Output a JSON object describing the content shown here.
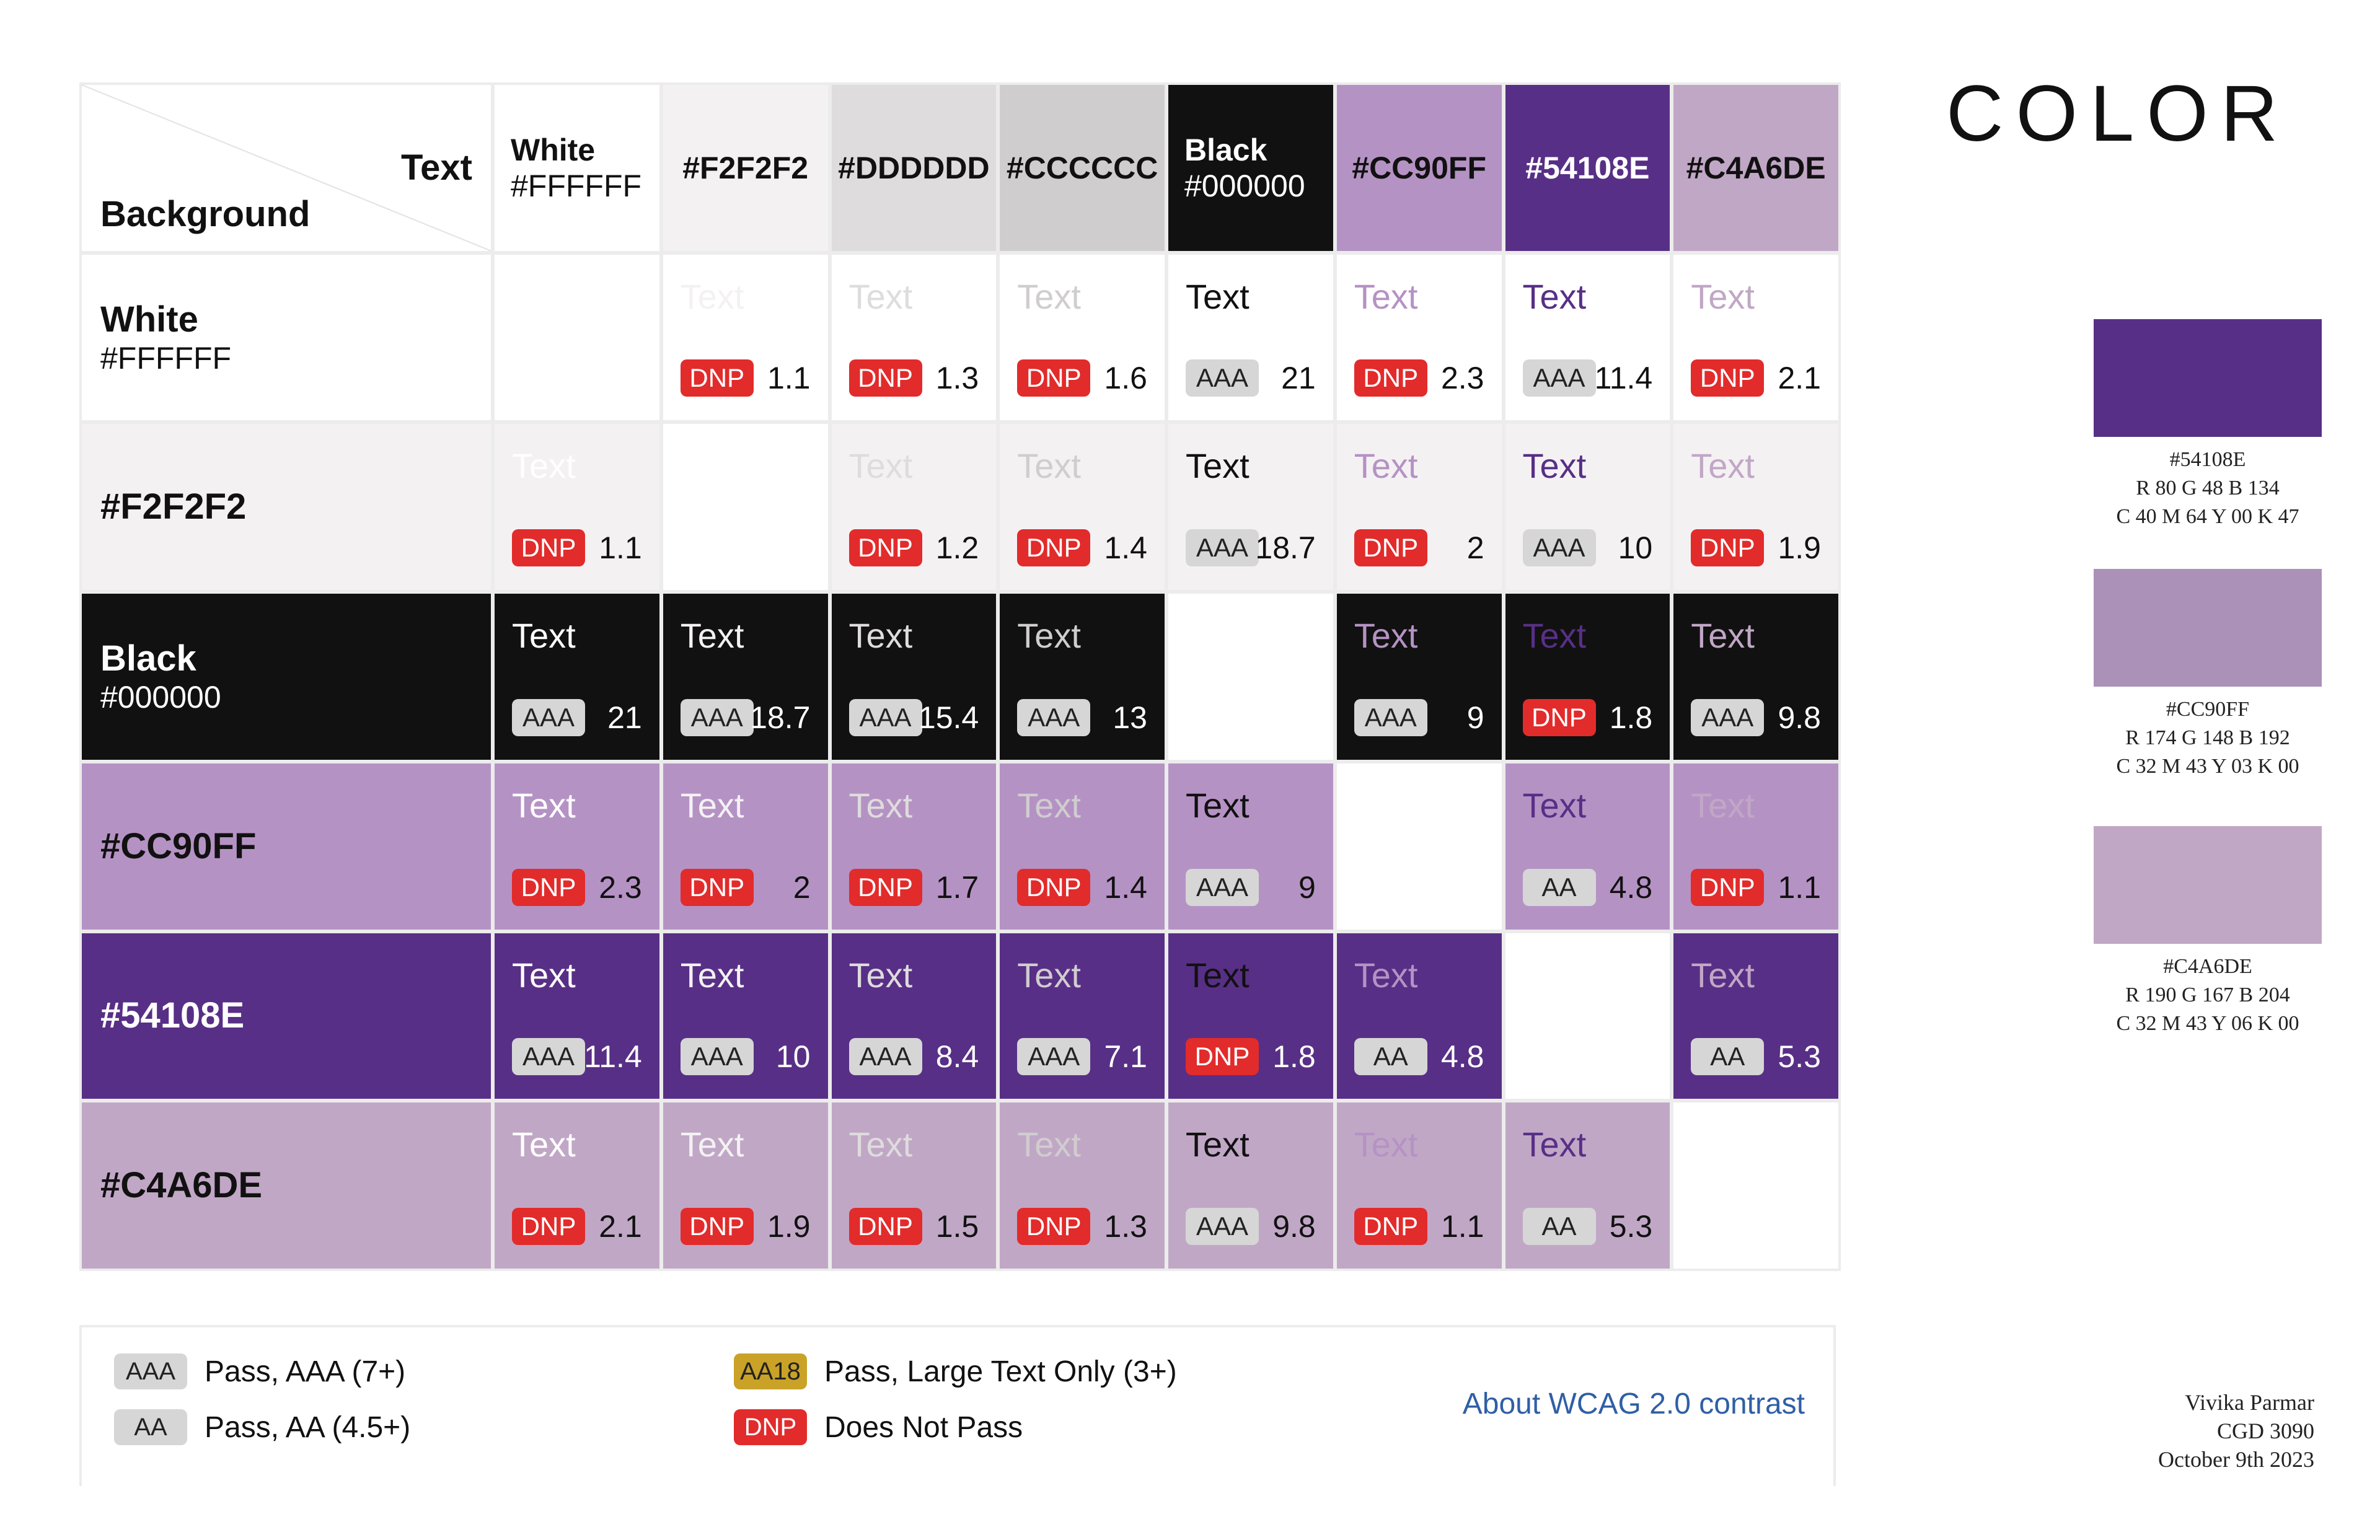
{
  "title": "COLOR",
  "corner": {
    "text_label": "Text",
    "background_label": "Background"
  },
  "sample_text": "Text",
  "columns": [
    {
      "name": "White",
      "hex": "#FFFFFF",
      "bg": "#ffffff",
      "fg": "#111111"
    },
    {
      "name": "",
      "hex": "#F2F2F2",
      "bg": "#f4f1f3",
      "fg": "#111111"
    },
    {
      "name": "",
      "hex": "#DDDDDD",
      "bg": "#dedcdd",
      "fg": "#111111"
    },
    {
      "name": "",
      "hex": "#CCCCCC",
      "bg": "#d0cdcf",
      "fg": "#111111"
    },
    {
      "name": "Black",
      "hex": "#000000",
      "bg": "#111111",
      "fg": "#ffffff"
    },
    {
      "name": "",
      "hex": "#CC90FF",
      "bg": "#b592c4",
      "fg": "#111111"
    },
    {
      "name": "",
      "hex": "#54108E",
      "bg": "#582f86",
      "fg": "#ffffff"
    },
    {
      "name": "",
      "hex": "#C4A6DE",
      "bg": "#c1a7c6",
      "fg": "#111111"
    }
  ],
  "text_colors": [
    "#ffffff",
    "#f4f1f3",
    "#dedcdd",
    "#d0cdcf",
    "#111111",
    "#b592c4",
    "#582f86",
    "#c1a7c6"
  ],
  "rows": [
    {
      "name": "White",
      "hex": "#FFFFFF",
      "bg": "#ffffff",
      "fg": "#111111",
      "cells": [
        null,
        {
          "badge": "DNP",
          "ratio": "1.1"
        },
        {
          "badge": "DNP",
          "ratio": "1.3"
        },
        {
          "badge": "DNP",
          "ratio": "1.6"
        },
        {
          "badge": "AAA",
          "ratio": "21"
        },
        {
          "badge": "DNP",
          "ratio": "2.3"
        },
        {
          "badge": "AAA",
          "ratio": "11.4"
        },
        {
          "badge": "DNP",
          "ratio": "2.1"
        }
      ]
    },
    {
      "name": "",
      "hex": "#F2F2F2",
      "bg": "#f4f1f3",
      "fg": "#111111",
      "cells": [
        {
          "badge": "DNP",
          "ratio": "1.1"
        },
        null,
        {
          "badge": "DNP",
          "ratio": "1.2"
        },
        {
          "badge": "DNP",
          "ratio": "1.4"
        },
        {
          "badge": "AAA",
          "ratio": "18.7"
        },
        {
          "badge": "DNP",
          "ratio": "2"
        },
        {
          "badge": "AAA",
          "ratio": "10"
        },
        {
          "badge": "DNP",
          "ratio": "1.9"
        }
      ]
    },
    {
      "name": "Black",
      "hex": "#000000",
      "bg": "#111111",
      "fg": "#ffffff",
      "cells": [
        {
          "badge": "AAA",
          "ratio": "21"
        },
        {
          "badge": "AAA",
          "ratio": "18.7"
        },
        {
          "badge": "AAA",
          "ratio": "15.4"
        },
        {
          "badge": "AAA",
          "ratio": "13"
        },
        null,
        {
          "badge": "AAA",
          "ratio": "9"
        },
        {
          "badge": "DNP",
          "ratio": "1.8"
        },
        {
          "badge": "AAA",
          "ratio": "9.8"
        }
      ]
    },
    {
      "name": "",
      "hex": "#CC90FF",
      "bg": "#b592c4",
      "fg": "#111111",
      "cells": [
        {
          "badge": "DNP",
          "ratio": "2.3"
        },
        {
          "badge": "DNP",
          "ratio": "2"
        },
        {
          "badge": "DNP",
          "ratio": "1.7"
        },
        {
          "badge": "DNP",
          "ratio": "1.4"
        },
        {
          "badge": "AAA",
          "ratio": "9"
        },
        null,
        {
          "badge": "AA",
          "ratio": "4.8"
        },
        {
          "badge": "DNP",
          "ratio": "1.1"
        }
      ]
    },
    {
      "name": "",
      "hex": "#54108E",
      "bg": "#582f86",
      "fg": "#ffffff",
      "cells": [
        {
          "badge": "AAA",
          "ratio": "11.4"
        },
        {
          "badge": "AAA",
          "ratio": "10"
        },
        {
          "badge": "AAA",
          "ratio": "8.4"
        },
        {
          "badge": "AAA",
          "ratio": "7.1"
        },
        {
          "badge": "DNP",
          "ratio": "1.8"
        },
        {
          "badge": "AA",
          "ratio": "4.8"
        },
        null,
        {
          "badge": "AA",
          "ratio": "5.3"
        }
      ]
    },
    {
      "name": "",
      "hex": "#C4A6DE",
      "bg": "#c1a7c6",
      "fg": "#111111",
      "cells": [
        {
          "badge": "DNP",
          "ratio": "2.1"
        },
        {
          "badge": "DNP",
          "ratio": "1.9"
        },
        {
          "badge": "DNP",
          "ratio": "1.5"
        },
        {
          "badge": "DNP",
          "ratio": "1.3"
        },
        {
          "badge": "AAA",
          "ratio": "9.8"
        },
        {
          "badge": "DNP",
          "ratio": "1.1"
        },
        {
          "badge": "AA",
          "ratio": "5.3"
        },
        null
      ]
    }
  ],
  "legend": {
    "aaa": {
      "badge": "AAA",
      "text": "Pass, AAA (7+)"
    },
    "aa": {
      "badge": "AA",
      "text": "Pass, AA (4.5+)"
    },
    "aa18": {
      "badge": "AA18",
      "text": "Pass, Large Text Only (3+)"
    },
    "dnp": {
      "badge": "DNP",
      "text": "Does Not Pass"
    },
    "link": "About WCAG 2.0 contrast"
  },
  "swatches": [
    {
      "color": "#582f86",
      "hex": "#54108E",
      "rgb": "R 80 G 48  B 134",
      "cmyk": "C 40 M 64 Y 00 K 47"
    },
    {
      "color": "#ab91b8",
      "hex": "#CC90FF",
      "rgb": "R 174 G 148 B 192",
      "cmyk": "C 32 M 43 Y 03 K 00"
    },
    {
      "color": "#c1a7c6",
      "hex": "#C4A6DE",
      "rgb": "R 190 G 167 B 204",
      "cmyk": "C 32 M 43 Y 06 K 00"
    }
  ],
  "credits": {
    "author": "Vivika Parmar",
    "course": "CGD 3090",
    "date": "October 9th 2023"
  }
}
